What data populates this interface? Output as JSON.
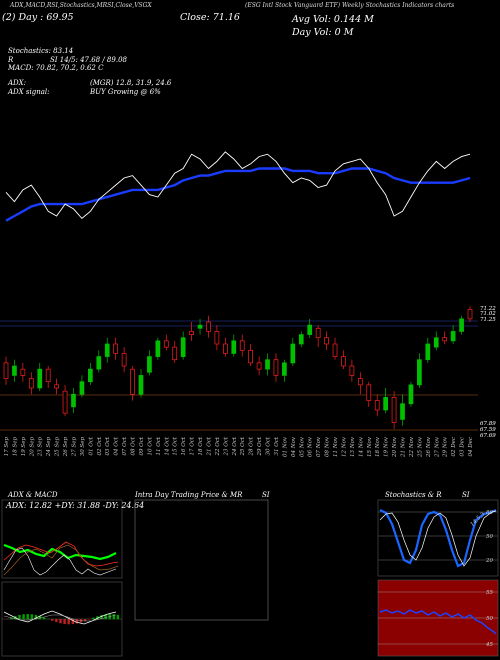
{
  "header": {
    "top_line_1": "(ESG Intl Stock Vanguard ETF) Weekly Stochastics Indicators charts",
    "top_line_2": "ADX,MACD,RSI,Stochastics,MRSI,Close,VSGX",
    "left_label": "EL Day",
    "left_value": "Close: 71.16",
    "left_value2": "(2) Day : 69.95",
    "right_label": "Avg Vol: 0.144 M",
    "right_label2": "Day Vol: 0   M"
  },
  "info": {
    "stochastics": "Stochastics: 83.14",
    "stoch_line": "SI 14/5: 47.68 / 89.08",
    "r_label": "R",
    "macd": "MACD: 70.82,  70.2,  0.62  C",
    "adx": "ADX:",
    "adx_values": "(MGR) 12.8,  31.9,  24.6",
    "adx_signal": "ADX  signal:",
    "buy_signal": "BUY Growing @ 6%"
  },
  "price_labels": {
    "p1": "71.22",
    "p2": "71.02",
    "p3": "71.25",
    "p4": "67.89",
    "p5": "67.59",
    "p6": "67.69"
  },
  "dates": [
    "17 Sep",
    "18 Sep",
    "19 Sep",
    "20 Sep",
    "23 Sep",
    "24 Sep",
    "25 Sep",
    "26 Sep",
    "27 Sep",
    "30 Sep",
    "01 Oct",
    "02 Oct",
    "03 Oct",
    "04 Oct",
    "07 Oct",
    "08 Oct",
    "09 Oct",
    "10 Oct",
    "11 Oct",
    "14 Oct",
    "15 Oct",
    "16 Oct",
    "17 Oct",
    "18 Oct",
    "21 Oct",
    "22 Oct",
    "23 Oct",
    "24 Oct",
    "25 Oct",
    "28 Oct",
    "29 Oct",
    "30 Oct",
    "31 Oct",
    "01 Nov",
    "04 Nov",
    "05 Nov",
    "06 Nov",
    "07 Nov",
    "08 Nov",
    "11 Nov",
    "12 Nov",
    "13 Nov",
    "14 Nov",
    "15 Nov",
    "18 Nov",
    "19 Nov",
    "20 Nov",
    "21 Nov",
    "22 Nov",
    "25 Nov",
    "26 Nov",
    "27 Nov",
    "29 Nov",
    "02 Dec",
    "03 Dec",
    "04 Dec"
  ],
  "panels": {
    "adx_title": "ADX  & MACD",
    "adx_values": "ADX: 12.82  +DY: 31.88  -DY: 24.64",
    "intra_title": "Intra  Day Trading Price  & MR",
    "intra_si": "SI",
    "stoch_title": "Stochastics & R",
    "stoch_si": "SI",
    "stoch_ticks": [
      "80",
      "50",
      "20"
    ],
    "stoch_label": "14,5,3",
    "mrsi_ticks": [
      "55",
      "50",
      "45"
    ]
  },
  "chart_data": {
    "type": "candlestick",
    "title": "",
    "ylim": [
      67.4,
      71.6
    ],
    "colors": {
      "up": "#00c000",
      "down": "#ff2020",
      "ema": "#1a3cff",
      "close_line": "#ffffff"
    },
    "candles": [
      {
        "o": 69.6,
        "c": 69.1,
        "h": 69.8,
        "l": 68.9
      },
      {
        "o": 69.2,
        "c": 69.5,
        "h": 69.7,
        "l": 69.0
      },
      {
        "o": 69.4,
        "c": 69.2,
        "h": 69.6,
        "l": 69.0
      },
      {
        "o": 69.1,
        "c": 68.8,
        "h": 69.3,
        "l": 68.6
      },
      {
        "o": 68.8,
        "c": 69.4,
        "h": 69.6,
        "l": 68.7
      },
      {
        "o": 69.4,
        "c": 69.0,
        "h": 69.5,
        "l": 68.8
      },
      {
        "o": 68.9,
        "c": 68.8,
        "h": 69.1,
        "l": 68.6
      },
      {
        "o": 68.7,
        "c": 68.0,
        "h": 68.9,
        "l": 67.9
      },
      {
        "o": 68.2,
        "c": 68.6,
        "h": 68.8,
        "l": 68.0
      },
      {
        "o": 68.6,
        "c": 69.0,
        "h": 69.2,
        "l": 68.5
      },
      {
        "o": 69.0,
        "c": 69.4,
        "h": 69.6,
        "l": 68.9
      },
      {
        "o": 69.4,
        "c": 69.8,
        "h": 70.0,
        "l": 69.3
      },
      {
        "o": 69.8,
        "c": 70.2,
        "h": 70.4,
        "l": 69.6
      },
      {
        "o": 70.2,
        "c": 69.9,
        "h": 70.4,
        "l": 69.7
      },
      {
        "o": 69.9,
        "c": 69.5,
        "h": 70.1,
        "l": 69.3
      },
      {
        "o": 69.4,
        "c": 68.6,
        "h": 69.5,
        "l": 68.4
      },
      {
        "o": 68.6,
        "c": 69.2,
        "h": 69.4,
        "l": 68.5
      },
      {
        "o": 69.3,
        "c": 69.8,
        "h": 70.0,
        "l": 69.2
      },
      {
        "o": 69.8,
        "c": 70.3,
        "h": 70.4,
        "l": 69.7
      },
      {
        "o": 70.3,
        "c": 70.1,
        "h": 70.5,
        "l": 70.0
      },
      {
        "o": 70.1,
        "c": 69.7,
        "h": 70.3,
        "l": 69.6
      },
      {
        "o": 69.8,
        "c": 70.4,
        "h": 70.6,
        "l": 69.7
      },
      {
        "o": 70.6,
        "c": 70.5,
        "h": 70.9,
        "l": 70.3
      },
      {
        "o": 70.7,
        "c": 70.8,
        "h": 71.0,
        "l": 70.5
      },
      {
        "o": 70.9,
        "c": 70.6,
        "h": 71.1,
        "l": 70.4
      },
      {
        "o": 70.6,
        "c": 70.2,
        "h": 70.8,
        "l": 70.0
      },
      {
        "o": 70.2,
        "c": 69.9,
        "h": 70.4,
        "l": 69.8
      },
      {
        "o": 69.9,
        "c": 70.3,
        "h": 70.5,
        "l": 69.8
      },
      {
        "o": 70.3,
        "c": 70.0,
        "h": 70.5,
        "l": 69.8
      },
      {
        "o": 70.0,
        "c": 69.6,
        "h": 70.2,
        "l": 69.5
      },
      {
        "o": 69.6,
        "c": 69.4,
        "h": 69.8,
        "l": 69.2
      },
      {
        "o": 69.4,
        "c": 69.7,
        "h": 69.9,
        "l": 69.2
      },
      {
        "o": 69.7,
        "c": 69.2,
        "h": 69.9,
        "l": 69.0
      },
      {
        "o": 69.2,
        "c": 69.6,
        "h": 69.7,
        "l": 69.0
      },
      {
        "o": 69.6,
        "c": 70.2,
        "h": 70.4,
        "l": 69.5
      },
      {
        "o": 70.2,
        "c": 70.5,
        "h": 70.6,
        "l": 70.1
      },
      {
        "o": 70.5,
        "c": 70.8,
        "h": 71.0,
        "l": 70.4
      },
      {
        "o": 70.7,
        "c": 70.4,
        "h": 70.8,
        "l": 70.1
      },
      {
        "o": 70.4,
        "c": 70.2,
        "h": 70.6,
        "l": 70.0
      },
      {
        "o": 70.2,
        "c": 69.8,
        "h": 70.4,
        "l": 69.7
      },
      {
        "o": 69.8,
        "c": 69.5,
        "h": 70.0,
        "l": 69.4
      },
      {
        "o": 69.5,
        "c": 69.2,
        "h": 69.7,
        "l": 69.0
      },
      {
        "o": 69.1,
        "c": 68.9,
        "h": 69.3,
        "l": 68.6
      },
      {
        "o": 68.9,
        "c": 68.4,
        "h": 69.0,
        "l": 68.2
      },
      {
        "o": 68.4,
        "c": 68.1,
        "h": 68.6,
        "l": 67.9
      },
      {
        "o": 68.1,
        "c": 68.5,
        "h": 68.8,
        "l": 68.0
      },
      {
        "o": 68.5,
        "c": 67.7,
        "h": 68.7,
        "l": 67.5
      },
      {
        "o": 67.8,
        "c": 68.3,
        "h": 68.6,
        "l": 67.6
      },
      {
        "o": 68.3,
        "c": 68.9,
        "h": 69.0,
        "l": 68.2
      },
      {
        "o": 68.9,
        "c": 69.7,
        "h": 69.9,
        "l": 68.8
      },
      {
        "o": 69.7,
        "c": 70.2,
        "h": 70.4,
        "l": 69.6
      },
      {
        "o": 70.1,
        "c": 70.4,
        "h": 70.6,
        "l": 70.0
      },
      {
        "o": 70.4,
        "c": 70.3,
        "h": 70.6,
        "l": 70.2
      },
      {
        "o": 70.3,
        "c": 70.6,
        "h": 70.8,
        "l": 70.2
      },
      {
        "o": 70.6,
        "c": 71.0,
        "h": 71.1,
        "l": 70.5
      },
      {
        "o": 71.3,
        "c": 71.0,
        "h": 71.4,
        "l": 70.9
      }
    ],
    "close_line": [
      70.6,
      70.2,
      70.7,
      70.9,
      70.4,
      69.8,
      69.6,
      70.1,
      69.9,
      69.5,
      69.8,
      70.3,
      70.6,
      70.9,
      71.2,
      71.3,
      70.9,
      70.5,
      70.4,
      70.9,
      71.4,
      71.6,
      72.2,
      72.0,
      71.6,
      71.9,
      72.3,
      72.0,
      71.6,
      71.8,
      72.1,
      72.2,
      71.9,
      71.4,
      71.0,
      71.2,
      71.1,
      70.8,
      70.9,
      71.5,
      71.8,
      71.9,
      72.0,
      71.6,
      71.0,
      70.5,
      69.6,
      69.8,
      70.4,
      71.0,
      71.5,
      71.9,
      71.6,
      71.9,
      72.1,
      72.2
    ],
    "ema_line": [
      69.4,
      69.6,
      69.8,
      70.0,
      70.1,
      70.1,
      70.1,
      70.1,
      70.1,
      70.1,
      70.2,
      70.3,
      70.4,
      70.5,
      70.6,
      70.7,
      70.7,
      70.7,
      70.7,
      70.8,
      70.9,
      71.1,
      71.2,
      71.3,
      71.3,
      71.4,
      71.5,
      71.5,
      71.5,
      71.5,
      71.6,
      71.6,
      71.6,
      71.6,
      71.5,
      71.5,
      71.5,
      71.4,
      71.4,
      71.4,
      71.5,
      71.6,
      71.6,
      71.6,
      71.5,
      71.4,
      71.2,
      71.1,
      71.0,
      71.0,
      71.0,
      71.0,
      71.0,
      71.0,
      71.1,
      71.2
    ]
  }
}
